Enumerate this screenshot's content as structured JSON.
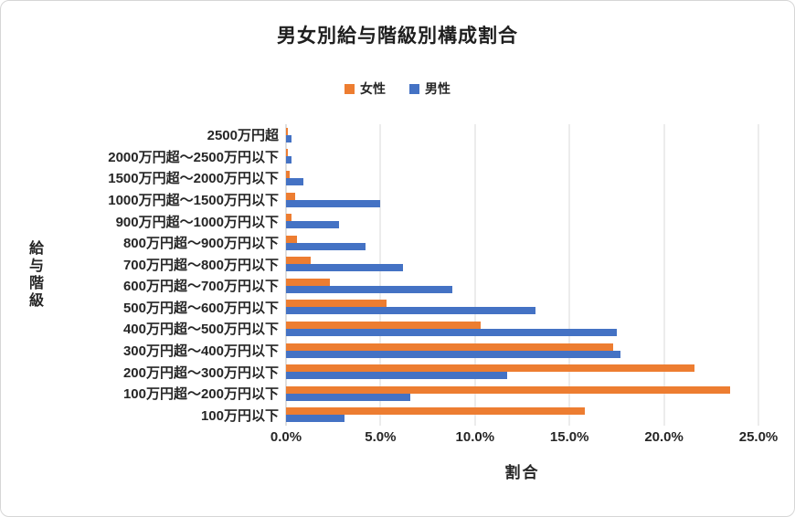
{
  "chart_data": {
    "type": "bar",
    "orientation": "horizontal",
    "title": "男女別給与階級別構成割合",
    "xlabel": "割合",
    "ylabel": "給与階級",
    "xlim": [
      0,
      25
    ],
    "x_tick_labels": [
      "0.0%",
      "5.0%",
      "10.0%",
      "15.0%",
      "20.0%",
      "25.0%"
    ],
    "grid": true,
    "legend_position": "top",
    "categories_top_to_bottom": [
      "2500万円超",
      "2000万円超～2500万円以下",
      "1500万円超～2000万円以下",
      "1000万円超～1500万円以下",
      "900万円超～1000万円以下",
      "800万円超～900万円以下",
      "700万円超～800万円以下",
      "600万円超～700万円以下",
      "500万円超～600万円以下",
      "400万円超～500万円以下",
      "300万円超～400万円以下",
      "200万円超～300万円以下",
      "100万円超～200万円以下",
      "100万円以下"
    ],
    "series": [
      {
        "name": "女性",
        "color": "#ED7D31",
        "values": [
          0.1,
          0.1,
          0.2,
          0.5,
          0.3,
          0.6,
          1.3,
          2.3,
          5.3,
          10.3,
          17.3,
          21.6,
          23.5,
          15.8
        ]
      },
      {
        "name": "男性",
        "color": "#4472C4",
        "values": [
          0.3,
          0.3,
          0.9,
          5.0,
          2.8,
          4.2,
          6.2,
          8.8,
          13.2,
          17.5,
          17.7,
          11.7,
          6.6,
          3.1
        ]
      }
    ]
  }
}
